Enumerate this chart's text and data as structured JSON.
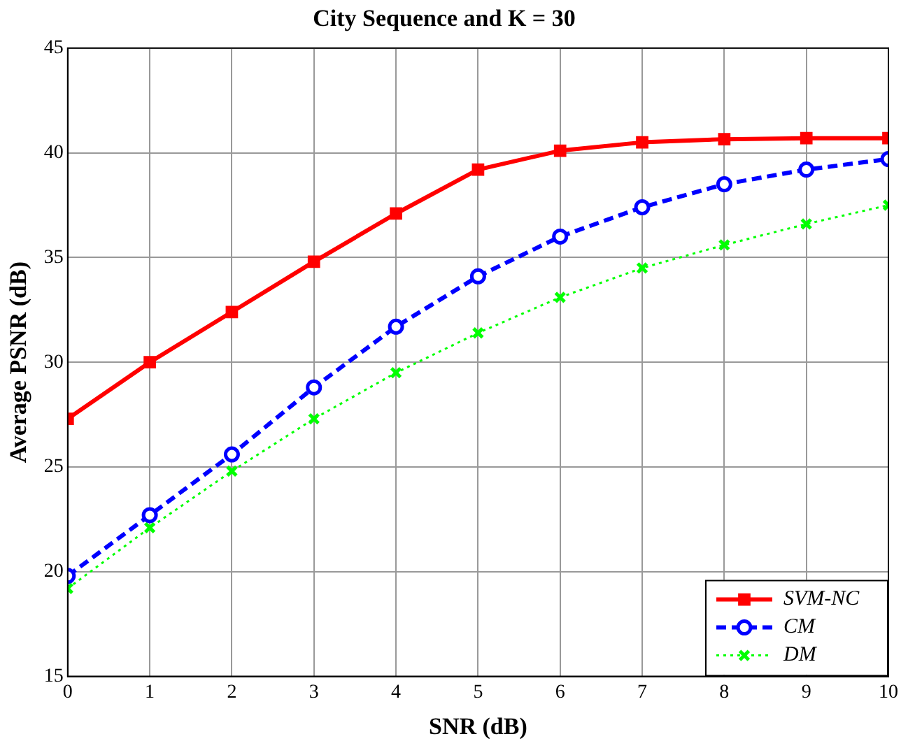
{
  "chart_data": {
    "type": "line",
    "title": "City Sequence and K = 30",
    "xlabel": "SNR (dB)",
    "ylabel": "Average PSNR (dB)",
    "x": [
      0,
      1,
      2,
      3,
      4,
      5,
      6,
      7,
      8,
      9,
      10
    ],
    "series": [
      {
        "name": "SVM-NC",
        "color": "#ff0000",
        "marker": "square",
        "line_style": "solid",
        "values": [
          27.3,
          30.0,
          32.4,
          34.8,
          37.1,
          39.2,
          40.1,
          40.5,
          40.65,
          40.7,
          40.7
        ]
      },
      {
        "name": "CM",
        "color": "#0000ff",
        "marker": "circle",
        "line_style": "dashed",
        "values": [
          19.8,
          22.7,
          25.6,
          28.8,
          31.7,
          34.1,
          36.0,
          37.4,
          38.5,
          39.2,
          39.7
        ]
      },
      {
        "name": "DM",
        "color": "#00ff00",
        "marker": "cross",
        "line_style": "dotted",
        "values": [
          19.2,
          22.1,
          24.8,
          27.3,
          29.5,
          31.4,
          33.1,
          34.5,
          35.6,
          36.6,
          37.5
        ]
      }
    ],
    "xlim": [
      0,
      10
    ],
    "xticks": [
      0,
      1,
      2,
      3,
      4,
      5,
      6,
      7,
      8,
      9,
      10
    ],
    "ylim": [
      15,
      45
    ],
    "yticks": [
      15,
      20,
      25,
      30,
      35,
      40,
      45
    ],
    "grid": true,
    "legend": "bottom right"
  }
}
